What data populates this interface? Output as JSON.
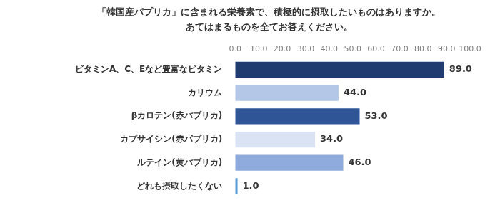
{
  "chart_data": {
    "type": "bar",
    "orientation": "horizontal",
    "title": [
      "「韓国産パプリカ」に含まれる栄養素で、積極的に摂取したいものはありますか。",
      "あてはまるものを全てお答えください。"
    ],
    "categories": [
      "ビタミンA、C、Eなど豊富なビタミン",
      "カリウム",
      "βカロテン(赤パプリカ)",
      "カプサイシン(赤パプリカ)",
      "ルテイン(黄パプリカ)",
      "どれも摂取したくない"
    ],
    "values": [
      89.0,
      44.0,
      53.0,
      34.0,
      46.0,
      1.0
    ],
    "value_labels": [
      "89.0",
      "44.0",
      "53.0",
      "34.0",
      "46.0",
      "1.0"
    ],
    "colors": [
      "#1f3b70",
      "#b4c7e7",
      "#2f5597",
      "#dae3f3",
      "#8faadc",
      "#5b9bd5"
    ],
    "xlim": [
      0,
      100
    ],
    "xticks": [
      {
        "value": 0,
        "label": "0.0"
      },
      {
        "value": 10,
        "label": "10.0"
      },
      {
        "value": 20,
        "label": "20.0"
      },
      {
        "value": 30,
        "label": "30.0"
      },
      {
        "value": 40,
        "label": "40.0"
      },
      {
        "value": 50,
        "label": "50.0"
      },
      {
        "value": 60,
        "label": "60.0"
      },
      {
        "value": 70,
        "label": "70.0"
      },
      {
        "value": 80,
        "label": "80.0"
      },
      {
        "value": 90,
        "label": "90.0"
      },
      {
        "value": 100,
        "label": "100.0"
      }
    ],
    "grid": false,
    "data_labels": true
  }
}
